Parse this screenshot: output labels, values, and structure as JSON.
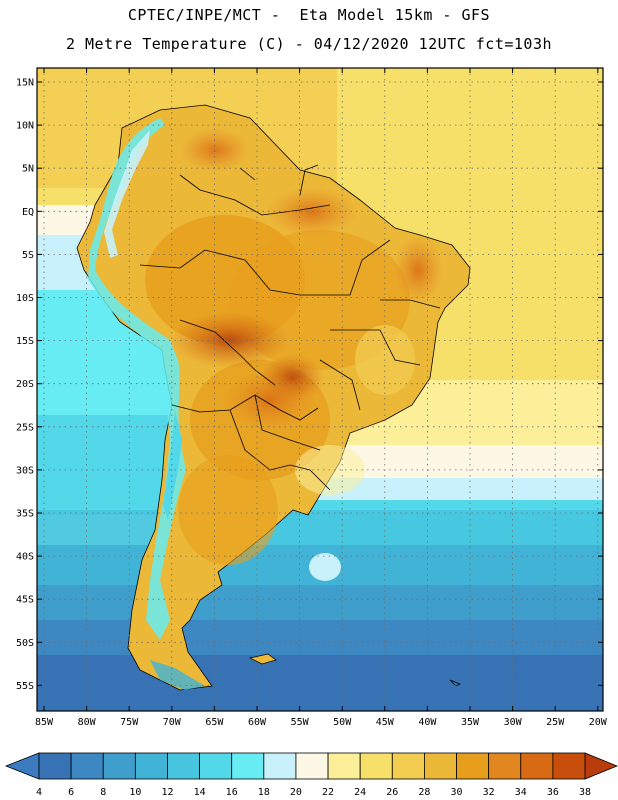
{
  "header": {
    "line1": "CPTEC/INPE/MCT -  Eta Model 15km - GFS",
    "line2": "2 Metre Temperature (C) - 04/12/2020 12UTC fct=103h"
  },
  "map": {
    "region": "South America",
    "lat_labels": [
      "15N",
      "10N",
      "5N",
      "EQ",
      "5S",
      "10S",
      "15S",
      "20S",
      "25S",
      "30S",
      "35S",
      "40S",
      "45S",
      "50S",
      "55S"
    ],
    "lon_labels": [
      "85W",
      "80W",
      "75W",
      "70W",
      "65W",
      "60W",
      "55W",
      "50W",
      "45W",
      "40W",
      "35W",
      "30W",
      "25W",
      "20W"
    ]
  },
  "colorbar": {
    "labels": [
      "4",
      "6",
      "8",
      "10",
      "12",
      "14",
      "16",
      "18",
      "20",
      "22",
      "24",
      "26",
      "28",
      "30",
      "32",
      "34",
      "36",
      "38"
    ],
    "low_color": "#3b7bbf",
    "high_color": "#b83c0c",
    "colors": [
      "#3672b4",
      "#3d88c2",
      "#3f9ecc",
      "#40b3d6",
      "#48c6df",
      "#52d8e8",
      "#66ecf2",
      "#c8f1fb",
      "#fdf8e6",
      "#fbef9a",
      "#f7e06a",
      "#f2cd52",
      "#ecb838",
      "#e79e1c",
      "#e2861f",
      "#d96a14",
      "#c84e0c"
    ]
  }
}
